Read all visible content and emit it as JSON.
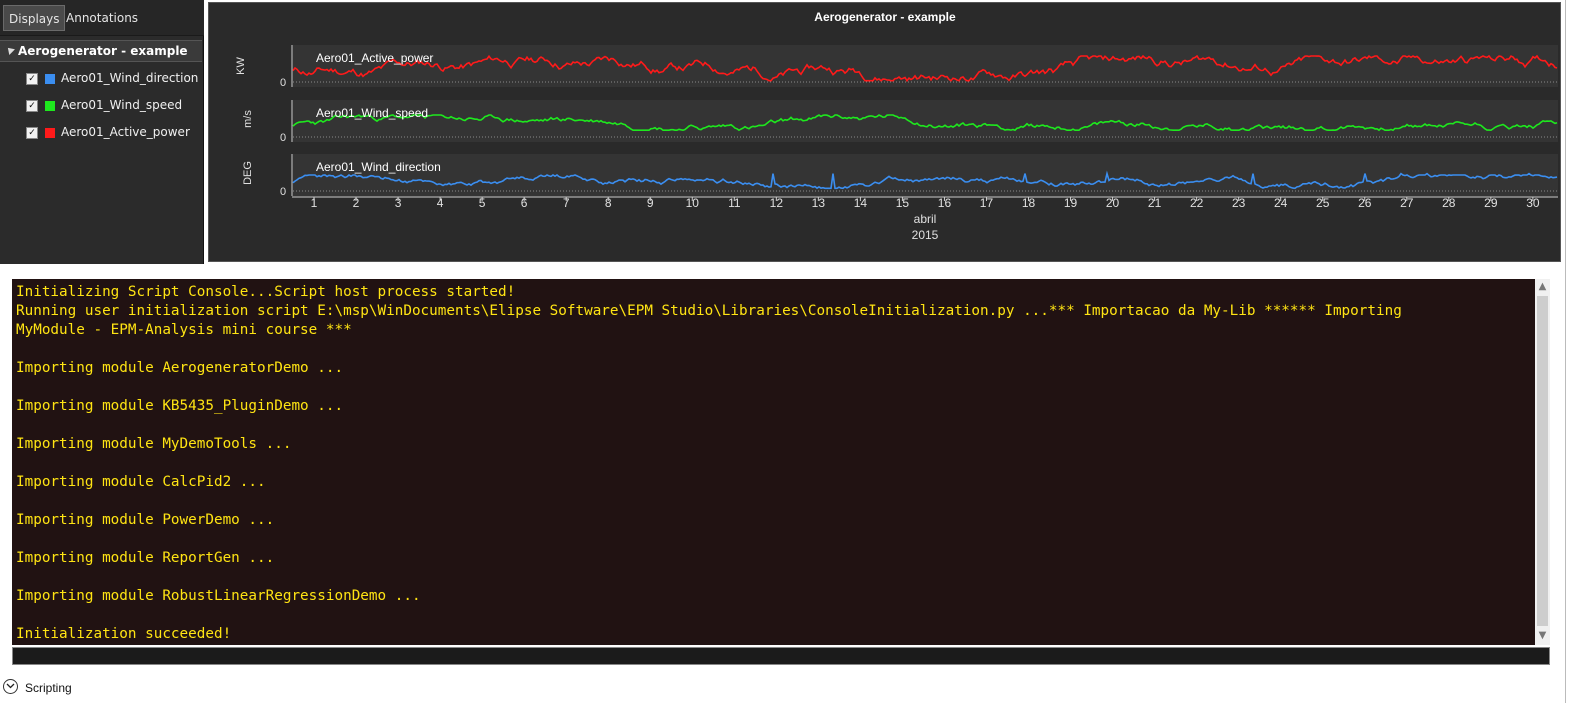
{
  "tabs": [
    {
      "label": "Displays",
      "active": true
    },
    {
      "label": "Annotations",
      "active": false
    }
  ],
  "tree": {
    "root_label": "Aerogenerator - example",
    "items": [
      {
        "label": "Aero01_Wind_direction",
        "color": "#3b8ef0",
        "checked": true
      },
      {
        "label": "Aero01_Wind_speed",
        "color": "#1ee81e",
        "checked": true
      },
      {
        "label": "Aero01_Active_power",
        "color": "#ff1a1a",
        "checked": true
      }
    ]
  },
  "chart": {
    "title": "Aerogenerator - example",
    "panels": [
      {
        "series": "Aero01_Active_power",
        "unit": "KW",
        "color": "#ff1a1a",
        "zero_label": "0"
      },
      {
        "series": "Aero01_Wind_speed",
        "unit": "m/s",
        "color": "#1ee81e",
        "zero_label": "0"
      },
      {
        "series": "Aero01_Wind_direction",
        "unit": "DEG",
        "color": "#3b8ef0",
        "zero_label": "0"
      }
    ],
    "x_ticks": [
      "1",
      "2",
      "3",
      "4",
      "5",
      "6",
      "7",
      "8",
      "9",
      "10",
      "11",
      "12",
      "13",
      "14",
      "15",
      "16",
      "17",
      "18",
      "19",
      "20",
      "21",
      "22",
      "23",
      "24",
      "25",
      "26",
      "27",
      "28",
      "29",
      "30"
    ],
    "x_month": "abril",
    "x_year": "2015"
  },
  "console": {
    "lines": [
      "Initializing Script Console...Script host process started!",
      "Running user initialization script E:\\msp\\WinDocuments\\Elipse Software\\EPM Studio\\Libraries\\ConsoleInitialization.py ...*** Importacao da My-Lib ****** Importing",
      "MyModule - EPM-Analysis mini course ***",
      "",
      "Importing module AerogeneratorDemo ...",
      "",
      "Importing module KB5435_PluginDemo ...",
      "",
      "Importing module MyDemoTools ...",
      "",
      "Importing module CalcPid2 ...",
      "",
      "Importing module PowerDemo ...",
      "",
      "Importing module ReportGen ...",
      "",
      "Importing module RobustLinearRegressionDemo ...",
      "",
      "Initialization succeeded!"
    ],
    "input_value": ""
  },
  "footer": {
    "label": "Scripting"
  }
}
